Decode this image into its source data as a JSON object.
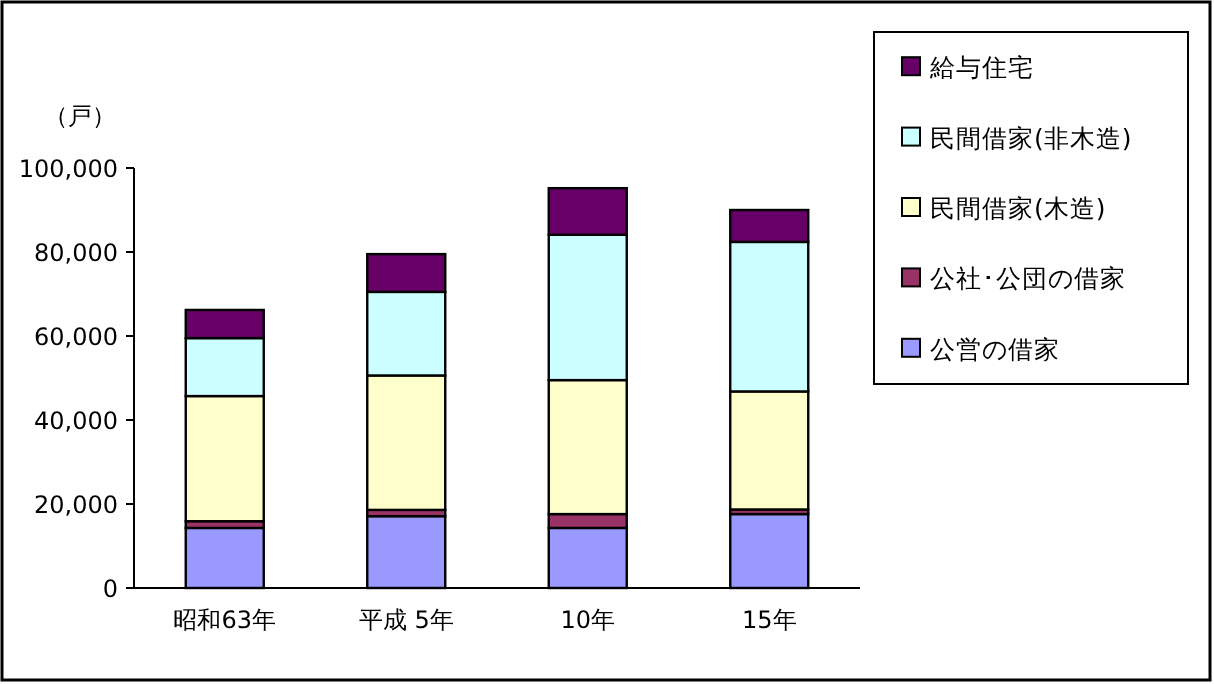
{
  "chart_data": {
    "type": "bar",
    "stacked": true,
    "ylabel": "（戸）",
    "categories": [
      "昭和63年",
      "平成 5年",
      "10年",
      "15年"
    ],
    "series": [
      {
        "name": "公営の借家",
        "color": "#9999ff",
        "values": [
          14300,
          17100,
          14300,
          17600
        ]
      },
      {
        "name": "公社･公団の借家",
        "color": "#993366",
        "values": [
          1600,
          1500,
          3300,
          1100
        ]
      },
      {
        "name": "民間借家(木造)",
        "color": "#ffffcc",
        "values": [
          29800,
          32000,
          31900,
          28100
        ]
      },
      {
        "name": "民間借家(非木造)",
        "color": "#ccffff",
        "values": [
          13800,
          19900,
          34600,
          35600
        ]
      },
      {
        "name": "給与住宅",
        "color": "#660066",
        "values": [
          6700,
          9000,
          11100,
          7600
        ]
      }
    ],
    "ylim": [
      0,
      100000
    ],
    "yticks": [
      0,
      {
        "value": 20000,
        "label": "20,000"
      },
      {
        "value": 40000,
        "label": "40,000"
      },
      {
        "value": 60000,
        "label": "60,000"
      },
      {
        "value": 80000,
        "label": "80,000"
      },
      {
        "value": 100000,
        "label": "100,000"
      }
    ],
    "legend": "right"
  }
}
